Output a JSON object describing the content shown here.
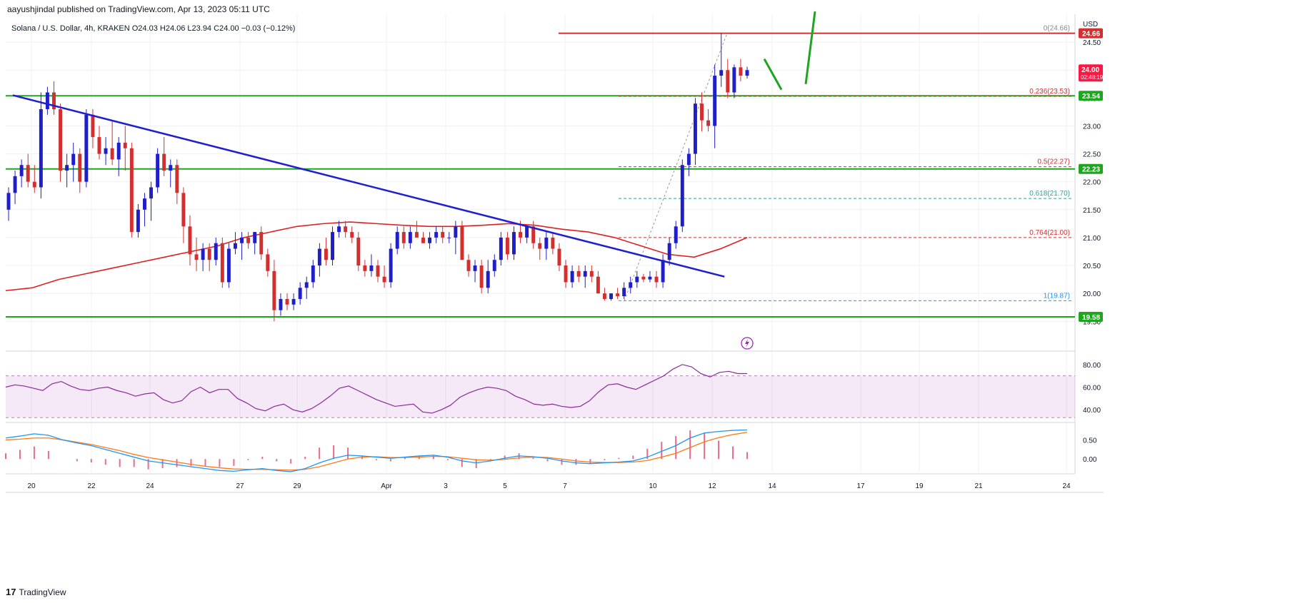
{
  "header": {
    "text": "aayushjindal published on TradingView.com, Apr 13, 2023 05:11 UTC"
  },
  "legend": {
    "text": "Solana / U.S. Dollar, 4h, KRAKEN  O24.03  H24.06  L23.94  C24.00  −0.03 (−0.12%)"
  },
  "footer": {
    "logo": "17",
    "brand": "TradingView"
  },
  "colors": {
    "bull": "#1f1fc8",
    "bear": "#d32f2f",
    "support": "#1fa51f",
    "trend": "#1f1fd0",
    "ma": "#e02020",
    "rsi": "#8a2a9a",
    "macd": "#2196f3",
    "signal": "#ff7a1a",
    "hist": "#e0305a"
  },
  "chart_data": [
    {
      "type": "candlestick",
      "title": "Solana / U.S. Dollar, 4h, KRAKEN",
      "ylabel": "USD",
      "ylim": [
        19.35,
        25.0
      ],
      "yticks": [
        19.5,
        20.0,
        20.5,
        21.0,
        21.5,
        22.0,
        22.5,
        23.0,
        23.5,
        24.0,
        24.5
      ],
      "xticks": [
        "20",
        "22",
        "24",
        "27",
        "29",
        "Apr",
        "3",
        "5",
        "7",
        "10",
        "12",
        "14",
        "17",
        "19",
        "21",
        "24"
      ],
      "ohlc_approx": [
        [
          21.5,
          21.9,
          21.3,
          21.8
        ],
        [
          21.8,
          22.2,
          21.6,
          22.1
        ],
        [
          22.1,
          22.4,
          21.9,
          22.3
        ],
        [
          22.3,
          22.5,
          21.9,
          22.0
        ],
        [
          22.0,
          22.3,
          21.8,
          21.9
        ],
        [
          21.9,
          23.6,
          21.7,
          23.3
        ],
        [
          23.3,
          23.7,
          23.2,
          23.6
        ],
        [
          23.6,
          23.8,
          23.2,
          23.3
        ],
        [
          23.3,
          23.4,
          22.0,
          22.2
        ],
        [
          22.2,
          22.5,
          21.9,
          22.3
        ],
        [
          22.3,
          22.7,
          22.0,
          22.5
        ],
        [
          22.5,
          22.6,
          21.8,
          22.0
        ],
        [
          22.0,
          23.3,
          21.9,
          23.2
        ],
        [
          23.2,
          23.3,
          22.6,
          22.8
        ],
        [
          22.8,
          23.0,
          22.4,
          22.5
        ],
        [
          22.5,
          22.8,
          22.3,
          22.6
        ],
        [
          22.6,
          23.1,
          22.3,
          22.4
        ],
        [
          22.4,
          22.8,
          22.1,
          22.7
        ],
        [
          22.7,
          23.0,
          22.2,
          22.6
        ],
        [
          22.6,
          22.7,
          21.0,
          21.1
        ],
        [
          21.1,
          21.6,
          21.0,
          21.5
        ],
        [
          21.5,
          21.8,
          21.2,
          21.7
        ],
        [
          21.7,
          22.0,
          21.3,
          21.9
        ],
        [
          21.9,
          22.6,
          21.8,
          22.5
        ],
        [
          22.5,
          22.8,
          22.1,
          22.2
        ],
        [
          22.2,
          22.4,
          21.9,
          22.3
        ],
        [
          22.3,
          22.4,
          21.6,
          21.8
        ],
        [
          21.8,
          21.9,
          20.9,
          21.2
        ],
        [
          21.2,
          21.4,
          20.5,
          20.7
        ],
        [
          20.7,
          21.0,
          20.4,
          20.6
        ],
        [
          20.6,
          20.9,
          20.4,
          20.8
        ],
        [
          20.8,
          20.9,
          20.4,
          20.6
        ],
        [
          20.6,
          21.0,
          20.5,
          20.9
        ],
        [
          20.9,
          21.0,
          20.1,
          20.2
        ],
        [
          20.2,
          20.9,
          20.1,
          20.8
        ],
        [
          20.8,
          21.1,
          20.7,
          20.9
        ],
        [
          20.9,
          21.1,
          20.6,
          21.0
        ],
        [
          21.0,
          21.1,
          20.8,
          20.9
        ],
        [
          20.9,
          21.1,
          20.7,
          21.1
        ],
        [
          21.1,
          21.2,
          20.6,
          20.7
        ],
        [
          20.7,
          20.8,
          20.3,
          20.4
        ],
        [
          20.4,
          20.6,
          19.5,
          19.7
        ],
        [
          19.7,
          20.0,
          19.6,
          19.9
        ],
        [
          19.9,
          20.0,
          19.7,
          19.8
        ],
        [
          19.8,
          20.0,
          19.7,
          19.9
        ],
        [
          19.9,
          20.2,
          19.8,
          20.1
        ],
        [
          20.1,
          20.3,
          19.9,
          20.2
        ],
        [
          20.2,
          20.6,
          20.1,
          20.5
        ],
        [
          20.5,
          20.9,
          20.3,
          20.8
        ],
        [
          20.8,
          21.0,
          20.5,
          20.6
        ],
        [
          20.6,
          21.2,
          20.5,
          21.1
        ],
        [
          21.1,
          21.3,
          21.0,
          21.2
        ],
        [
          21.2,
          21.3,
          21.0,
          21.1
        ],
        [
          21.1,
          21.2,
          20.9,
          21.0
        ],
        [
          21.0,
          21.1,
          20.4,
          20.5
        ],
        [
          20.5,
          20.6,
          20.3,
          20.4
        ],
        [
          20.4,
          20.7,
          20.3,
          20.5
        ],
        [
          20.5,
          20.6,
          20.2,
          20.3
        ],
        [
          20.3,
          20.5,
          20.1,
          20.2
        ],
        [
          20.2,
          20.9,
          20.1,
          20.8
        ],
        [
          20.8,
          21.2,
          20.7,
          21.1
        ],
        [
          21.1,
          21.2,
          20.8,
          20.9
        ],
        [
          20.9,
          21.2,
          20.8,
          21.1
        ],
        [
          21.1,
          21.3,
          21.0,
          21.0
        ],
        [
          21.0,
          21.1,
          20.9,
          20.9
        ],
        [
          20.9,
          21.1,
          20.8,
          21.0
        ],
        [
          21.0,
          21.2,
          20.9,
          21.1
        ],
        [
          21.1,
          21.2,
          20.9,
          21.0
        ],
        [
          21.0,
          21.1,
          20.9,
          21.0
        ],
        [
          21.0,
          21.3,
          20.7,
          21.2
        ],
        [
          21.2,
          21.3,
          20.6,
          20.6
        ],
        [
          20.6,
          20.7,
          20.3,
          20.4
        ],
        [
          20.4,
          20.6,
          20.2,
          20.5
        ],
        [
          20.5,
          20.6,
          20.0,
          20.1
        ],
        [
          20.1,
          20.6,
          20.0,
          20.4
        ],
        [
          20.4,
          20.7,
          20.3,
          20.6
        ],
        [
          20.6,
          21.1,
          20.5,
          21.0
        ],
        [
          21.0,
          21.1,
          20.6,
          20.7
        ],
        [
          20.7,
          21.2,
          20.6,
          21.1
        ],
        [
          21.1,
          21.3,
          20.9,
          21.0
        ],
        [
          21.0,
          21.2,
          20.9,
          21.2
        ],
        [
          21.2,
          21.3,
          20.8,
          20.9
        ],
        [
          20.9,
          21.0,
          20.6,
          20.8
        ],
        [
          20.8,
          21.1,
          20.6,
          21.0
        ],
        [
          21.0,
          21.1,
          20.7,
          20.8
        ],
        [
          20.8,
          20.9,
          20.4,
          20.5
        ],
        [
          20.5,
          20.6,
          20.1,
          20.2
        ],
        [
          20.2,
          20.5,
          20.1,
          20.4
        ],
        [
          20.4,
          20.5,
          20.2,
          20.3
        ],
        [
          20.3,
          20.5,
          20.1,
          20.4
        ],
        [
          20.4,
          20.5,
          20.2,
          20.3
        ],
        [
          20.3,
          20.4,
          20.0,
          20.0
        ],
        [
          20.0,
          20.1,
          19.87,
          19.9
        ],
        [
          19.9,
          20.0,
          19.87,
          20.0
        ],
        [
          20.0,
          20.1,
          19.9,
          19.95
        ],
        [
          19.95,
          20.2,
          19.9,
          20.1
        ],
        [
          20.1,
          20.3,
          20.0,
          20.2
        ],
        [
          20.2,
          20.4,
          20.1,
          20.3
        ],
        [
          20.3,
          20.35,
          20.2,
          20.25
        ],
        [
          20.25,
          20.4,
          20.2,
          20.3
        ],
        [
          20.3,
          20.4,
          20.1,
          20.2
        ],
        [
          20.2,
          20.7,
          20.1,
          20.6
        ],
        [
          20.6,
          21.0,
          20.5,
          20.9
        ],
        [
          20.9,
          21.3,
          20.8,
          21.2
        ],
        [
          21.2,
          22.4,
          21.1,
          22.3
        ],
        [
          22.3,
          22.6,
          22.1,
          22.5
        ],
        [
          22.5,
          23.5,
          22.3,
          23.4
        ],
        [
          23.4,
          23.6,
          22.9,
          23.1
        ],
        [
          23.1,
          23.3,
          22.9,
          23.0
        ],
        [
          23.0,
          24.1,
          22.6,
          23.9
        ],
        [
          23.9,
          24.66,
          23.7,
          24.0
        ],
        [
          24.0,
          24.2,
          23.5,
          23.6
        ],
        [
          23.6,
          24.1,
          23.5,
          24.05
        ],
        [
          24.05,
          24.2,
          23.8,
          23.9
        ],
        [
          23.9,
          24.06,
          23.85,
          24.0
        ]
      ],
      "levels": [
        {
          "label": "24.66",
          "value": 24.66,
          "kind": "resistance"
        },
        {
          "label": "23.54",
          "value": 23.54,
          "kind": "support"
        },
        {
          "label": "22.23",
          "value": 22.23,
          "kind": "support"
        },
        {
          "label": "19.58",
          "value": 19.58,
          "kind": "support"
        }
      ],
      "last_price": {
        "label": "24.00",
        "value": 24.0,
        "countdown": "02:48:19"
      },
      "fib_levels": [
        {
          "label": "0(24.66)",
          "value": 24.66
        },
        {
          "label": "0.236(23.53)",
          "value": 23.53
        },
        {
          "label": "0.5(22.27)",
          "value": 22.27
        },
        {
          "label": "0.618(21.70)",
          "value": 21.7
        },
        {
          "label": "0.764(21.00)",
          "value": 21.0
        },
        {
          "label": "1(19.87)",
          "value": 19.87
        }
      ],
      "trendline": {
        "from": [
          0.65,
          23.55
        ],
        "to": [
          110.5,
          20.3
        ]
      },
      "ma_approx": [
        20.05,
        20.1,
        20.25,
        20.35,
        20.45,
        20.55,
        20.65,
        20.75,
        20.85,
        21.0,
        21.1,
        21.2,
        21.25,
        21.28,
        21.25,
        21.22,
        21.2,
        21.2,
        21.22,
        21.25,
        21.22,
        21.15,
        21.1,
        21.0,
        20.85,
        20.7,
        20.65,
        20.8,
        21.0
      ]
    },
    {
      "type": "line",
      "title": "RSI",
      "ylim": [
        30,
        90
      ],
      "yticks": [
        40.0,
        60.0,
        80.0
      ],
      "band": [
        30,
        70
      ],
      "values_approx": [
        60,
        62,
        61,
        59,
        57,
        63,
        65,
        61,
        58,
        57,
        59,
        60,
        57,
        55,
        52,
        54,
        55,
        49,
        46,
        48,
        56,
        60,
        55,
        58,
        58,
        50,
        46,
        41,
        39,
        43,
        45,
        40,
        38,
        41,
        46,
        52,
        59,
        61,
        57,
        53,
        49,
        46,
        43,
        44,
        45,
        38,
        37,
        40,
        44,
        51,
        55,
        58,
        60,
        59,
        57,
        52,
        49,
        45,
        44,
        45,
        43,
        42,
        43,
        48,
        56,
        62,
        63,
        60,
        58,
        62,
        66,
        70,
        76,
        80,
        78,
        72,
        69,
        73,
        74,
        72,
        72
      ]
    },
    {
      "type": "line",
      "title": "MACD",
      "ylim": [
        -0.35,
        0.9
      ],
      "yticks": [
        0.0,
        0.5
      ],
      "macd_approx": [
        0.55,
        0.6,
        0.66,
        0.62,
        0.5,
        0.42,
        0.35,
        0.25,
        0.15,
        0.05,
        -0.05,
        -0.1,
        -0.15,
        -0.2,
        -0.25,
        -0.3,
        -0.32,
        -0.28,
        -0.25,
        -0.3,
        -0.33,
        -0.25,
        -0.1,
        0.02,
        0.1,
        0.08,
        0.05,
        0.02,
        0.05,
        0.08,
        0.1,
        0.05,
        -0.05,
        -0.1,
        -0.05,
        0.02,
        0.08,
        0.06,
        0.02,
        -0.05,
        -0.1,
        -0.12,
        -0.1,
        -0.08,
        -0.05,
        0.05,
        0.2,
        0.35,
        0.55,
        0.68,
        0.72,
        0.75,
        0.76
      ],
      "signal_approx": [
        0.5,
        0.52,
        0.55,
        0.55,
        0.5,
        0.44,
        0.38,
        0.3,
        0.22,
        0.12,
        0.04,
        -0.02,
        -0.08,
        -0.14,
        -0.19,
        -0.23,
        -0.26,
        -0.27,
        -0.27,
        -0.28,
        -0.29,
        -0.27,
        -0.2,
        -0.1,
        0.0,
        0.05,
        0.06,
        0.04,
        0.04,
        0.05,
        0.07,
        0.06,
        0.02,
        -0.02,
        -0.03,
        -0.01,
        0.03,
        0.05,
        0.04,
        0.0,
        -0.05,
        -0.08,
        -0.09,
        -0.09,
        -0.08,
        -0.04,
        0.05,
        0.15,
        0.3,
        0.45,
        0.56,
        0.64,
        0.7
      ]
    }
  ]
}
